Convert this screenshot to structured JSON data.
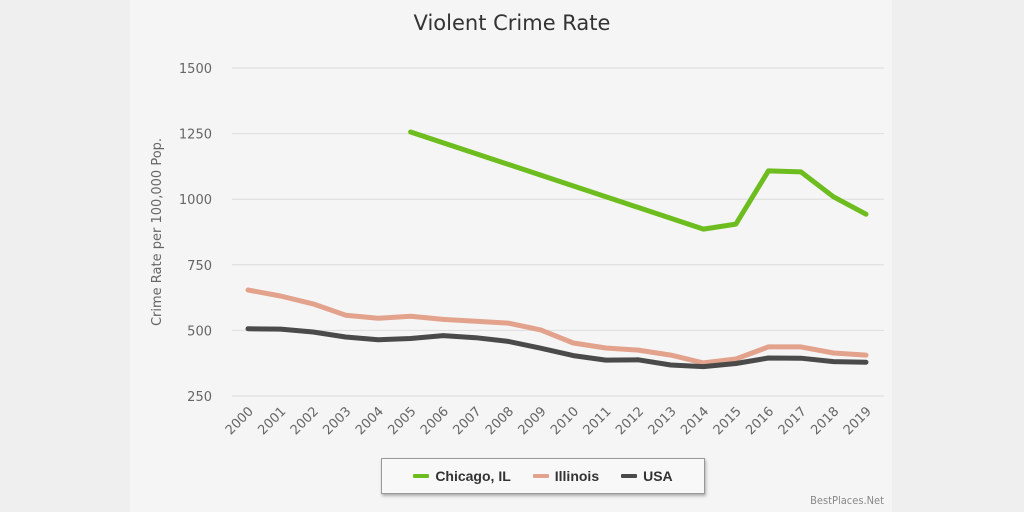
{
  "chart_data": {
    "type": "line",
    "title": "Violent Crime Rate",
    "xlabel": "",
    "ylabel": "Crime Rate per 100,000 Pop.",
    "ylim": [
      250,
      1500
    ],
    "yticks": [
      1500,
      1250,
      1000,
      750,
      500,
      250
    ],
    "grid": true,
    "legend_position": "bottom",
    "categories": [
      "2000",
      "2001",
      "2002",
      "2003",
      "2004",
      "2005",
      "2006",
      "2007",
      "2008",
      "2009",
      "2010",
      "2011",
      "2012",
      "2013",
      "2014",
      "2015",
      "2016",
      "2017",
      "2018",
      "2019"
    ],
    "series": [
      {
        "name": "Chicago, IL",
        "color": "#6dbd1f",
        "values": [
          null,
          null,
          null,
          null,
          null,
          1256,
          null,
          null,
          null,
          null,
          null,
          null,
          null,
          null,
          886,
          905,
          1108,
          1104,
          1009,
          943
        ]
      },
      {
        "name": "Illinois",
        "color": "#e2a28c",
        "values": [
          654,
          631,
          601,
          558,
          546,
          554,
          542,
          535,
          528,
          502,
          452,
          433,
          425,
          406,
          376,
          391,
          437,
          437,
          414,
          406
        ]
      },
      {
        "name": "USA",
        "color": "#4a4a4a",
        "values": [
          506,
          505,
          494,
          475,
          464,
          469,
          480,
          472,
          458,
          432,
          404,
          387,
          388,
          368,
          362,
          374,
          395,
          394,
          381,
          379
        ]
      }
    ],
    "credit": "BestPlaces.Net"
  }
}
